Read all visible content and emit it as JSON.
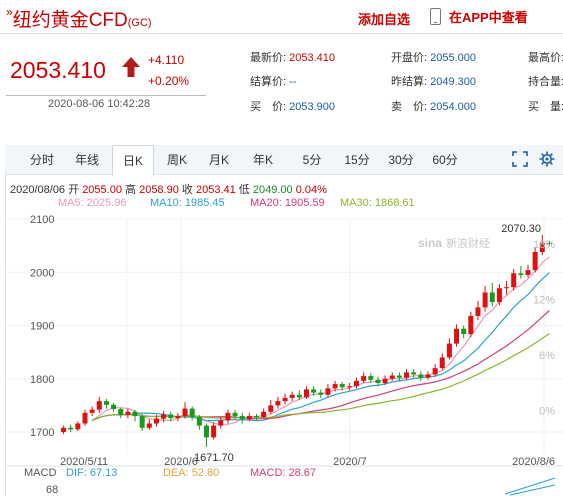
{
  "header": {
    "title": "纽约黄金CFD",
    "title_prefix": "»",
    "symbol": "(GC)",
    "watch_label": "添加自选",
    "app_label": "在APP中查看"
  },
  "quote": {
    "price": "2053.410",
    "change": "+4.110",
    "change_pct": "+0.20%",
    "timestamp": "2020-08-06 10:42:28"
  },
  "details": [
    {
      "label": "最新价:",
      "value": "2053.410"
    },
    {
      "label": "开盘价:",
      "value": "2055.000"
    },
    {
      "label": "最高价:",
      "value": ""
    },
    {
      "label": "结算价:",
      "value": "--"
    },
    {
      "label": "昨结算:",
      "value": "2049.300"
    },
    {
      "label": "持合量:",
      "value": ""
    },
    {
      "label": "买　价:",
      "value": "2053.900"
    },
    {
      "label": "卖　价:",
      "value": "2054.000"
    },
    {
      "label": "买　量:",
      "value": ""
    }
  ],
  "tabs": [
    "分时",
    "年线",
    "日K",
    "周K",
    "月K",
    "年K",
    "5分",
    "15分",
    "30分",
    "60分"
  ],
  "active_tab": "日K",
  "ohlc": {
    "date": "2020/08/06",
    "open_label": "开",
    "open": "2055.00",
    "high_label": "高",
    "high": "2058.90",
    "close_label": "收",
    "close": "2053.41",
    "low_label": "低",
    "low": "2049.00",
    "pct": "0.04%"
  },
  "ma_legend": [
    {
      "label": "MA5: 2025.96",
      "color": "#e89ab8"
    },
    {
      "label": "MA10: 1985.45",
      "color": "#2aa0d8"
    },
    {
      "label": "MA20: 1905.59",
      "color": "#d43c7a"
    },
    {
      "label": "MA30: 1868.61",
      "color": "#8ab62a"
    }
  ],
  "watermark": "新浪财经",
  "chart_data": {
    "type": "candlestick",
    "y_ticks": [
      "2100",
      "2000",
      "1900",
      "1800",
      "1700"
    ],
    "y_tick_values": [
      2100,
      2000,
      1900,
      1800,
      1700
    ],
    "pct_ticks": [
      "18%",
      "12%",
      "6%",
      "0%"
    ],
    "pct_tick_values": [
      18,
      12,
      6,
      0
    ],
    "x_ticks": [
      "2020/5/11",
      "2020/6",
      "2020/7",
      "2020/8/6"
    ],
    "annotations": {
      "max": "2070.30",
      "min": "1671.70"
    },
    "ylim": [
      1680,
      2090
    ],
    "candles": [
      [
        1700,
        1708,
        1712,
        1696
      ],
      [
        1708,
        1705,
        1714,
        1700
      ],
      [
        1705,
        1716,
        1720,
        1702
      ],
      [
        1716,
        1736,
        1742,
        1712
      ],
      [
        1736,
        1742,
        1748,
        1730
      ],
      [
        1742,
        1758,
        1766,
        1736
      ],
      [
        1758,
        1751,
        1762,
        1744
      ],
      [
        1751,
        1743,
        1755,
        1738
      ],
      [
        1743,
        1732,
        1746,
        1726
      ],
      [
        1732,
        1738,
        1744,
        1726
      ],
      [
        1738,
        1730,
        1742,
        1720
      ],
      [
        1730,
        1708,
        1734,
        1702
      ],
      [
        1708,
        1716,
        1724,
        1704
      ],
      [
        1716,
        1725,
        1732,
        1710
      ],
      [
        1725,
        1733,
        1740,
        1718
      ],
      [
        1733,
        1726,
        1738,
        1720
      ],
      [
        1726,
        1730,
        1736,
        1720
      ],
      [
        1730,
        1744,
        1756,
        1725
      ],
      [
        1744,
        1728,
        1748,
        1722
      ],
      [
        1728,
        1712,
        1732,
        1704
      ],
      [
        1712,
        1690,
        1716,
        1672
      ],
      [
        1690,
        1712,
        1718,
        1686
      ],
      [
        1712,
        1722,
        1728,
        1706
      ],
      [
        1722,
        1736,
        1742,
        1716
      ],
      [
        1736,
        1730,
        1742,
        1724
      ],
      [
        1730,
        1724,
        1736,
        1716
      ],
      [
        1724,
        1730,
        1736,
        1720
      ],
      [
        1730,
        1728,
        1734,
        1722
      ],
      [
        1728,
        1738,
        1744,
        1726
      ],
      [
        1738,
        1750,
        1760,
        1734
      ],
      [
        1750,
        1758,
        1766,
        1744
      ],
      [
        1758,
        1764,
        1772,
        1752
      ],
      [
        1764,
        1770,
        1776,
        1758
      ],
      [
        1770,
        1765,
        1778,
        1760
      ],
      [
        1765,
        1780,
        1786,
        1762
      ],
      [
        1780,
        1774,
        1786,
        1768
      ],
      [
        1774,
        1770,
        1780,
        1764
      ],
      [
        1770,
        1782,
        1790,
        1766
      ],
      [
        1782,
        1790,
        1796,
        1776
      ],
      [
        1790,
        1784,
        1794,
        1778
      ],
      [
        1784,
        1786,
        1792,
        1778
      ],
      [
        1786,
        1796,
        1802,
        1782
      ],
      [
        1796,
        1805,
        1812,
        1792
      ],
      [
        1805,
        1798,
        1810,
        1792
      ],
      [
        1798,
        1792,
        1804,
        1786
      ],
      [
        1792,
        1800,
        1806,
        1788
      ],
      [
        1800,
        1806,
        1812,
        1796
      ],
      [
        1806,
        1802,
        1812,
        1796
      ],
      [
        1802,
        1812,
        1818,
        1798
      ],
      [
        1812,
        1808,
        1818,
        1802
      ],
      [
        1808,
        1802,
        1814,
        1796
      ],
      [
        1802,
        1808,
        1814,
        1798
      ],
      [
        1808,
        1820,
        1828,
        1804
      ],
      [
        1820,
        1840,
        1848,
        1816
      ],
      [
        1840,
        1866,
        1876,
        1836
      ],
      [
        1866,
        1894,
        1902,
        1860
      ],
      [
        1894,
        1884,
        1900,
        1876
      ],
      [
        1884,
        1918,
        1926,
        1878
      ],
      [
        1918,
        1934,
        1946,
        1910
      ],
      [
        1934,
        1962,
        1974,
        1926
      ],
      [
        1962,
        1944,
        1980,
        1936
      ],
      [
        1944,
        1970,
        1978,
        1938
      ],
      [
        1970,
        1972,
        1984,
        1958
      ],
      [
        1972,
        1998,
        2006,
        1966
      ],
      [
        1998,
        1995,
        2012,
        1988
      ],
      [
        1995,
        2004,
        2014,
        1990
      ],
      [
        2004,
        2038,
        2046,
        2000
      ],
      [
        2038,
        2055,
        2070,
        2032
      ],
      [
        2055,
        2053,
        2059,
        2049
      ]
    ]
  },
  "macd": {
    "label": "MACD",
    "dif": "DIF: 67.13",
    "dea": "DEA: 52.80",
    "macd": "MACD: 28.67",
    "axis_value": "68"
  }
}
